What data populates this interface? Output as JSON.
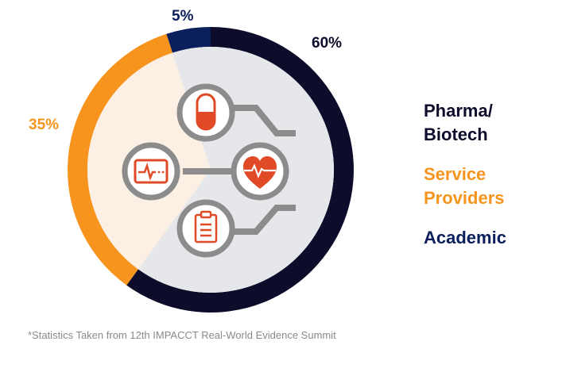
{
  "chart_data": {
    "type": "pie",
    "variant": "donut",
    "slices": [
      {
        "label": "Pharma/\nBiotech",
        "value": 60,
        "value_label": "60%",
        "color": "#0d0d2b"
      },
      {
        "label": "Service\nProviders",
        "value": 35,
        "value_label": "35%",
        "color": "#f7941d"
      },
      {
        "label": "Academic",
        "value": 5,
        "value_label": "5%",
        "color": "#0a1f5c"
      }
    ],
    "legend_position": "right",
    "footnote": "*Statistics Taken from 12th IMPACCT Real-World Evidence Summit"
  },
  "icons": [
    "capsule-icon",
    "heart-monitor-icon",
    "heart-pulse-icon",
    "clipboard-icon"
  ],
  "colors": {
    "icon_stroke": "#8c8c8c",
    "icon_accent": "#e04a26",
    "inner_fill_grey": "#e6e7eb",
    "inner_fill_cream": "#fcefe3"
  }
}
